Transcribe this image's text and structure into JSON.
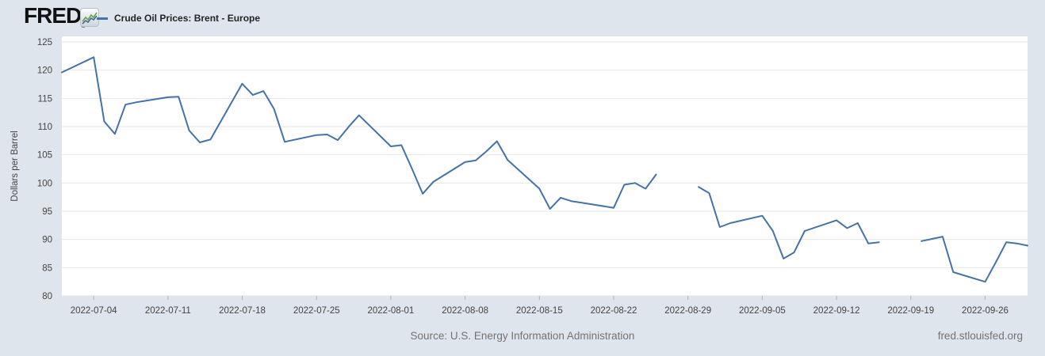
{
  "header": {
    "logo_text": "FRED",
    "logo_registered": "®",
    "logo_icon": "sparkline-chart-icon",
    "legend": {
      "label": "Crude Oil Prices: Brent - Europe"
    }
  },
  "footer": {
    "source": "Source: U.S. Energy Information Administration",
    "site_link": "fred.stlouisfed.org"
  },
  "colors": {
    "background": "#dfe5ec",
    "plot_background": "#ffffff",
    "gridline": "#e6e6e6",
    "line": "#4572a7",
    "tick_text": "#444444",
    "axis_title_text": "#444444",
    "tick_mark": "#a9b3bd"
  },
  "chart_data": {
    "type": "line",
    "title": "Crude Oil Prices: Brent - Europe",
    "ylabel": "Dollars per Barrel",
    "xlabel": "",
    "ylim": [
      80,
      125
    ],
    "grid": "horizontal-only",
    "legend_position": "top-left-header",
    "y_ticks": [
      80,
      85,
      90,
      95,
      100,
      105,
      110,
      115,
      120,
      125
    ],
    "x_ticks": [
      "2022-07-04",
      "2022-07-11",
      "2022-07-18",
      "2022-07-25",
      "2022-08-01",
      "2022-08-08",
      "2022-08-15",
      "2022-08-22",
      "2022-08-29",
      "2022-09-05",
      "2022-09-12",
      "2022-09-19",
      "2022-09-26"
    ],
    "x_range": [
      "2022-07-01",
      "2022-09-30"
    ],
    "gaps_note": "null values are market holidays rendered as line gaps",
    "series": [
      {
        "name": "Crude Oil Prices: Brent - Europe",
        "points": [
          [
            "2022-07-01",
            119.6
          ],
          [
            "2022-07-04",
            122.3
          ],
          [
            "2022-07-05",
            110.9
          ],
          [
            "2022-07-06",
            108.7
          ],
          [
            "2022-07-07",
            113.9
          ],
          [
            "2022-07-08",
            114.3
          ],
          [
            "2022-07-11",
            115.2
          ],
          [
            "2022-07-12",
            115.3
          ],
          [
            "2022-07-13",
            109.3
          ],
          [
            "2022-07-14",
            107.2
          ],
          [
            "2022-07-15",
            107.7
          ],
          [
            "2022-07-18",
            117.6
          ],
          [
            "2022-07-19",
            115.6
          ],
          [
            "2022-07-20",
            116.3
          ],
          [
            "2022-07-21",
            113.1
          ],
          [
            "2022-07-22",
            107.3
          ],
          [
            "2022-07-25",
            108.5
          ],
          [
            "2022-07-26",
            108.6
          ],
          [
            "2022-07-27",
            107.6
          ],
          [
            "2022-07-28",
            109.9
          ],
          [
            "2022-07-29",
            112.0
          ],
          [
            "2022-08-01",
            106.5
          ],
          [
            "2022-08-02",
            106.7
          ],
          [
            "2022-08-03",
            102.5
          ],
          [
            "2022-08-04",
            98.1
          ],
          [
            "2022-08-05",
            100.2
          ],
          [
            "2022-08-08",
            103.7
          ],
          [
            "2022-08-09",
            104.0
          ],
          [
            "2022-08-10",
            105.6
          ],
          [
            "2022-08-11",
            107.4
          ],
          [
            "2022-08-12",
            104.1
          ],
          [
            "2022-08-15",
            99.0
          ],
          [
            "2022-08-16",
            95.4
          ],
          [
            "2022-08-17",
            97.4
          ],
          [
            "2022-08-18",
            96.8
          ],
          [
            "2022-08-19",
            96.5
          ],
          [
            "2022-08-22",
            95.6
          ],
          [
            "2022-08-23",
            99.7
          ],
          [
            "2022-08-24",
            100.0
          ],
          [
            "2022-08-25",
            99.0
          ],
          [
            "2022-08-26",
            101.5
          ],
          [
            "2022-08-29",
            null
          ],
          [
            "2022-08-30",
            99.3
          ],
          [
            "2022-08-31",
            98.2
          ],
          [
            "2022-09-01",
            92.2
          ],
          [
            "2022-09-02",
            92.9
          ],
          [
            "2022-09-05",
            94.2
          ],
          [
            "2022-09-06",
            91.5
          ],
          [
            "2022-09-07",
            86.6
          ],
          [
            "2022-09-08",
            87.7
          ],
          [
            "2022-09-09",
            91.5
          ],
          [
            "2022-09-12",
            93.4
          ],
          [
            "2022-09-13",
            92.0
          ],
          [
            "2022-09-14",
            92.9
          ],
          [
            "2022-09-15",
            89.3
          ],
          [
            "2022-09-16",
            89.5
          ],
          [
            "2022-09-19",
            null
          ],
          [
            "2022-09-20",
            89.7
          ],
          [
            "2022-09-21",
            90.1
          ],
          [
            "2022-09-22",
            90.5
          ],
          [
            "2022-09-23",
            84.2
          ],
          [
            "2022-09-26",
            82.5
          ],
          [
            "2022-09-27",
            85.9
          ],
          [
            "2022-09-28",
            89.5
          ],
          [
            "2022-09-29",
            89.3
          ],
          [
            "2022-09-30",
            88.9
          ]
        ]
      }
    ]
  }
}
